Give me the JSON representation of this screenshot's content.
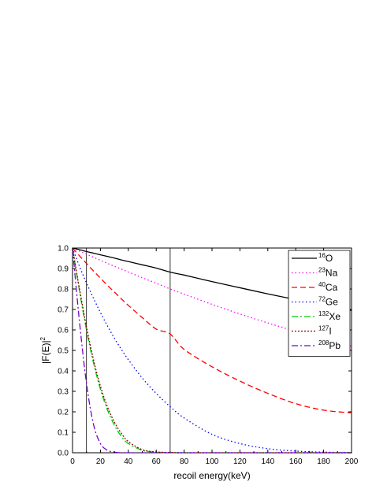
{
  "chart_data": {
    "type": "line",
    "xlabel": "recoil energy(keV)",
    "ylabel": "|F(E)|",
    "ylabel_sup": "2",
    "xlim": [
      0,
      200
    ],
    "ylim": [
      0,
      1.0
    ],
    "xticks": [
      0,
      20,
      40,
      60,
      80,
      100,
      120,
      140,
      160,
      180,
      200
    ],
    "yticks": [
      0.0,
      0.1,
      0.2,
      0.3,
      0.4,
      0.5,
      0.6,
      0.7,
      0.8,
      0.9,
      1.0
    ],
    "grid": false,
    "legend_position": "top-right",
    "vertical_lines": [
      10,
      70
    ],
    "x": [
      0,
      5,
      10,
      15,
      20,
      25,
      30,
      35,
      40,
      50,
      60,
      70,
      80,
      100,
      120,
      140,
      160,
      180,
      200
    ],
    "series": [
      {
        "name": "O",
        "mass": "16",
        "color": "#000000",
        "dash": "solid",
        "values": [
          1.0,
          0.992,
          0.983,
          0.975,
          0.967,
          0.959,
          0.951,
          0.942,
          0.934,
          0.918,
          0.902,
          0.882,
          0.868,
          0.836,
          0.806,
          0.776,
          0.748,
          0.722,
          0.695
        ]
      },
      {
        "name": "Na",
        "mass": "23",
        "color": "#ff00ff",
        "dash": "dot",
        "values": [
          1.0,
          0.985,
          0.97,
          0.955,
          0.94,
          0.925,
          0.911,
          0.897,
          0.883,
          0.855,
          0.828,
          0.8,
          0.775,
          0.725,
          0.678,
          0.634,
          0.593,
          0.555,
          0.52
        ]
      },
      {
        "name": "Ca",
        "mass": "40",
        "color": "#ff0000",
        "dash": "dash",
        "values": [
          1.0,
          0.962,
          0.925,
          0.888,
          0.853,
          0.818,
          0.785,
          0.752,
          0.72,
          0.66,
          0.604,
          0.58,
          0.505,
          0.42,
          0.35,
          0.29,
          0.24,
          0.208,
          0.195
        ]
      },
      {
        "name": "Ge",
        "mass": "72",
        "color": "#0000ff",
        "dash": "dot",
        "values": [
          1.0,
          0.91,
          0.83,
          0.755,
          0.685,
          0.62,
          0.56,
          0.505,
          0.455,
          0.365,
          0.29,
          0.225,
          0.17,
          0.09,
          0.045,
          0.02,
          0.008,
          0.003,
          0.001
        ]
      },
      {
        "name": "Xe",
        "mass": "132",
        "color": "#00cc00",
        "dash": "dashdot",
        "values": [
          1.0,
          0.79,
          0.6,
          0.44,
          0.31,
          0.21,
          0.135,
          0.08,
          0.045,
          0.012,
          0.003,
          0.001,
          0.0,
          0.0,
          0.0,
          0.0,
          0.0,
          0.0,
          0.0
        ]
      },
      {
        "name": "I",
        "mass": "127",
        "color": "#8b0000",
        "dash": "shortdot",
        "values": [
          1.0,
          0.8,
          0.615,
          0.455,
          0.325,
          0.225,
          0.15,
          0.095,
          0.055,
          0.015,
          0.004,
          0.001,
          0.0,
          0.0,
          0.0,
          0.0,
          0.0,
          0.0,
          0.0
        ]
      },
      {
        "name": "Pb",
        "mass": "208",
        "color": "#7700cc",
        "dash": "dashdot",
        "values": [
          1.0,
          0.64,
          0.34,
          0.14,
          0.045,
          0.012,
          0.003,
          0.0,
          0.0,
          0.0,
          0.0,
          0.0,
          0.0,
          0.0,
          0.0,
          0.0,
          0.0,
          0.0,
          0.0
        ]
      }
    ]
  }
}
